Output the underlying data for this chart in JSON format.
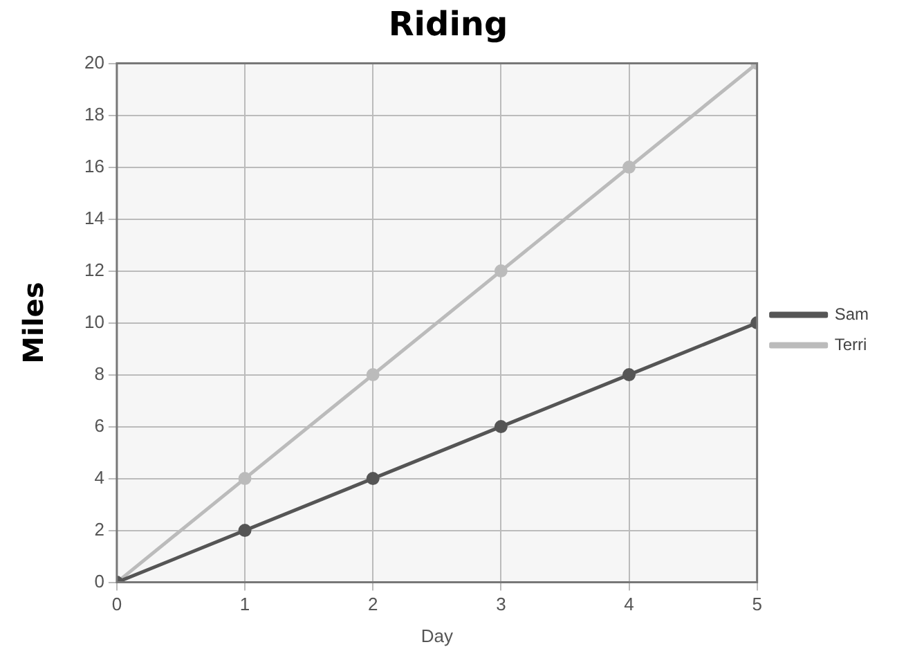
{
  "chart_data": {
    "type": "line",
    "title": "Riding",
    "xlabel": "Day",
    "ylabel": "Miles",
    "x": [
      0,
      1,
      2,
      3,
      4,
      5
    ],
    "series": [
      {
        "name": "Sam",
        "color": "#555555",
        "values": [
          0,
          2,
          4,
          6,
          8,
          10
        ]
      },
      {
        "name": "Terri",
        "color": "#bbbbbb",
        "values": [
          0,
          4,
          8,
          12,
          16,
          20
        ]
      }
    ],
    "xlim": [
      0,
      5
    ],
    "xticks": [
      0,
      1,
      2,
      3,
      4,
      5
    ],
    "ylim": [
      0,
      20
    ],
    "yticks": [
      0,
      2,
      4,
      6,
      8,
      10,
      12,
      14,
      16,
      18,
      20
    ],
    "grid": true,
    "legend": "right",
    "marker": "circle",
    "line_style": "solid"
  }
}
